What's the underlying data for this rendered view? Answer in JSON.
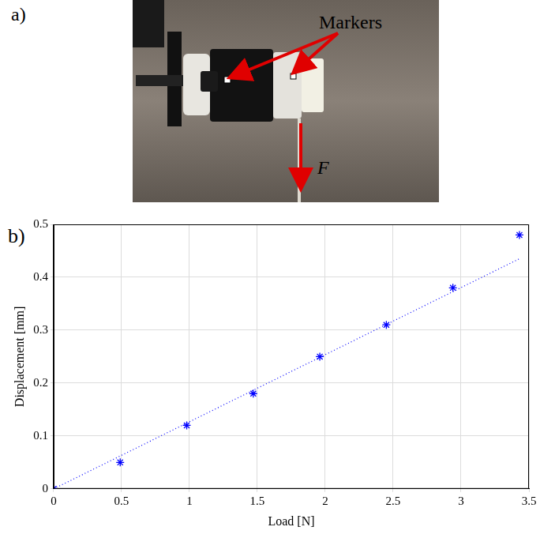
{
  "photo": {
    "panel_label": "a)",
    "labels": [
      "Markers",
      "F"
    ]
  },
  "chart_data": {
    "type": "scatter",
    "panel_label": "b)",
    "x_label": "Load [N]",
    "y_label": "Displacement [mm]",
    "series": [
      {
        "type": "scatter",
        "marker": "star",
        "color": "#0000ff",
        "x": [
          0,
          0.49,
          0.98,
          1.47,
          1.96,
          2.45,
          2.94,
          3.43
        ],
        "values": [
          0,
          0.05,
          0.12,
          0.18,
          0.25,
          0.31,
          0.38,
          0.48
        ]
      },
      {
        "type": "line",
        "line_style": "dotted",
        "color": "#0000ff",
        "x": [
          0,
          3.43
        ],
        "values": [
          0,
          0.435
        ]
      }
    ],
    "xlim": [
      0,
      3.5
    ],
    "xticks": [
      0,
      0.5,
      1,
      1.5,
      2,
      2.5,
      3,
      3.5
    ],
    "ylim": [
      0,
      0.5
    ],
    "yticks": [
      0,
      0.1,
      0.2,
      0.3,
      0.4,
      0.5
    ],
    "grid": true
  }
}
